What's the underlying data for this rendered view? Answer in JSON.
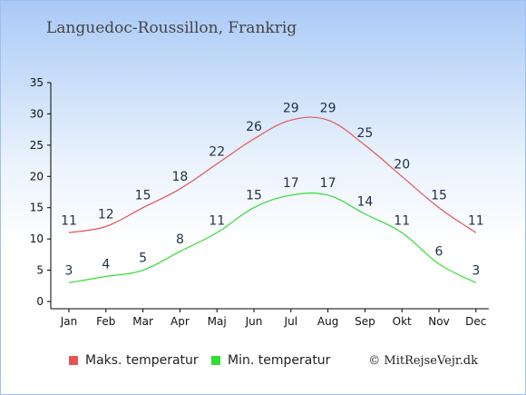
{
  "header": {
    "title": "Languedoc-Roussillon, Frankrig"
  },
  "chart_data": {
    "type": "line",
    "categories": [
      "Jan",
      "Feb",
      "Mar",
      "Apr",
      "Maj",
      "Jun",
      "Jul",
      "Aug",
      "Sep",
      "Okt",
      "Nov",
      "Dec"
    ],
    "series": [
      {
        "name": "Maks. temperatur",
        "color": "#e65555",
        "values": [
          11,
          12,
          15,
          18,
          22,
          26,
          29,
          29,
          25,
          20,
          15,
          11
        ]
      },
      {
        "name": "Min. temperatur",
        "color": "#33dd33",
        "values": [
          3,
          4,
          5,
          8,
          11,
          15,
          17,
          17,
          14,
          11,
          6,
          3
        ]
      }
    ],
    "yticks": [
      0,
      5,
      10,
      15,
      20,
      25,
      30,
      35
    ],
    "ylim": [
      0,
      35
    ],
    "grid": false,
    "legend_position": "bottom-left"
  },
  "legend": {
    "max_label": "Maks. temperatur",
    "min_label": "Min. temperatur"
  },
  "footer": {
    "credit": "© MitRejseVejr.dk"
  }
}
